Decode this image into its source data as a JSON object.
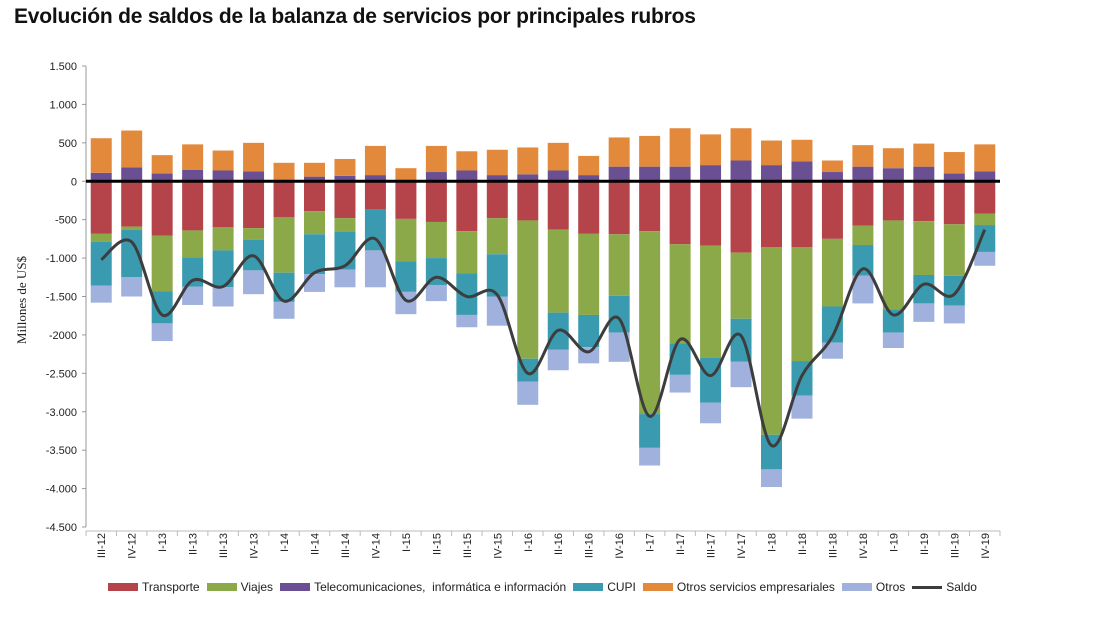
{
  "title": "Evolución de saldos de la balanza de servicios por principales rubros",
  "chart_data": {
    "type": "bar",
    "stacked": true,
    "ylabel": "Millones de US$",
    "ylim": [
      -4500,
      1500
    ],
    "yticks": [
      1500,
      1000,
      500,
      0,
      -500,
      -1000,
      -1500,
      -2000,
      -2500,
      -3000,
      -3500,
      -4000,
      -4500
    ],
    "ytick_labels": [
      "1.500",
      "1.000",
      "500",
      "0",
      "-500",
      "-1.000",
      "-1.500",
      "-2000",
      "-2.500",
      "-3.000",
      "-3.500",
      "-4.000",
      "-4.500"
    ],
    "categories": [
      "III-12",
      "IV-12",
      "I-13",
      "II-13",
      "III-13",
      "IV-13",
      "I-14",
      "II-14",
      "III-14",
      "IV-14",
      "I-15",
      "II-15",
      "III-15",
      "IV-15",
      "I-16",
      "II-16",
      "III-16",
      "IV-16",
      "I-17",
      "II-17",
      "III-17",
      "IV-17",
      "I-18",
      "II-18",
      "III-18",
      "IV-18",
      "I-19",
      "II-19",
      "III-19",
      "IV-19"
    ],
    "series": [
      {
        "name": "Transporte",
        "color": "#b5444a",
        "values": [
          -680,
          -590,
          -710,
          -640,
          -600,
          -610,
          -470,
          -390,
          -480,
          -370,
          -490,
          -530,
          -650,
          -480,
          -510,
          -630,
          -680,
          -690,
          -650,
          -820,
          -840,
          -930,
          -860,
          -860,
          -750,
          -580,
          -510,
          -520,
          -560,
          -420
        ]
      },
      {
        "name": "Viajes",
        "color": "#8ba948",
        "values": [
          -110,
          -40,
          -720,
          -350,
          -300,
          -150,
          -720,
          -300,
          -180,
          0,
          -550,
          -470,
          -550,
          -470,
          -1800,
          -1080,
          -1060,
          -800,
          -2380,
          -1290,
          -1460,
          -860,
          -2440,
          -1480,
          -880,
          -250,
          -1160,
          -700,
          -670,
          -150
        ]
      },
      {
        "name": "Telecomunicaciones,  informática e información",
        "color": "#6a4f93",
        "values": [
          110,
          180,
          100,
          150,
          140,
          130,
          0,
          60,
          70,
          80,
          0,
          120,
          140,
          80,
          90,
          140,
          80,
          190,
          190,
          190,
          210,
          270,
          210,
          260,
          120,
          190,
          170,
          190,
          100,
          130
        ]
      },
      {
        "name": "CUPI",
        "color": "#3a9bb0",
        "values": [
          -570,
          -620,
          -420,
          -380,
          -480,
          -400,
          -380,
          -520,
          -490,
          -530,
          -400,
          -350,
          -540,
          -550,
          -300,
          -480,
          -420,
          -480,
          -440,
          -410,
          -580,
          -560,
          -450,
          -450,
          -470,
          -400,
          -300,
          -370,
          -390,
          -350
        ]
      },
      {
        "name": "Otros servicios empresariales",
        "color": "#e2893c",
        "values": [
          450,
          480,
          240,
          330,
          260,
          370,
          240,
          180,
          220,
          380,
          170,
          340,
          250,
          330,
          350,
          360,
          250,
          380,
          400,
          500,
          400,
          420,
          320,
          280,
          150,
          280,
          260,
          300,
          280,
          350
        ]
      },
      {
        "name": "Otros",
        "color": "#9fb1dc",
        "values": [
          -220,
          -250,
          -230,
          -240,
          -250,
          -310,
          -220,
          -230,
          -230,
          -480,
          -290,
          -210,
          -160,
          -380,
          -300,
          -270,
          -210,
          -380,
          -230,
          -230,
          -270,
          -330,
          -230,
          -300,
          -210,
          -360,
          -200,
          -240,
          -230,
          -180
        ]
      },
      {
        "name": "Saldo",
        "color": "#3d3d3d",
        "type": "line",
        "values": [
          -1020,
          -790,
          -1740,
          -1290,
          -1370,
          -970,
          -1560,
          -1190,
          -1100,
          -750,
          -1550,
          -1250,
          -1500,
          -1480,
          -2500,
          -1940,
          -2220,
          -1790,
          -3060,
          -2060,
          -2530,
          -2010,
          -3440,
          -2530,
          -2020,
          -1140,
          -1740,
          -1340,
          -1470,
          -630
        ]
      }
    ],
    "legend_position": "bottom"
  }
}
